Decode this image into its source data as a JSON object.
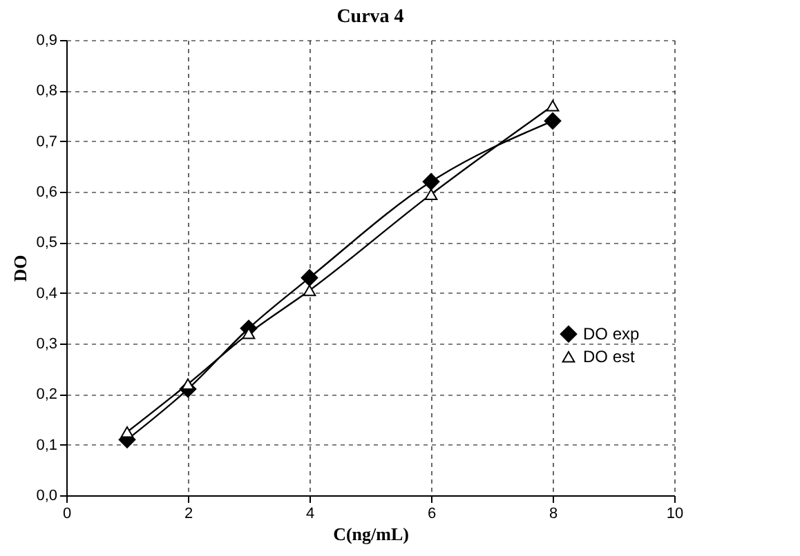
{
  "chart_data": {
    "type": "line",
    "title": "Curva 4",
    "xlabel": "C(ng/mL)",
    "ylabel": "DO",
    "x": [
      1,
      2,
      3,
      4,
      6,
      8
    ],
    "series": [
      {
        "name": "DO exp",
        "color": "#000000",
        "marker": "diamond",
        "values": [
          0.11,
          0.21,
          0.33,
          0.43,
          0.62,
          0.74
        ]
      },
      {
        "name": "DO est",
        "color": "#000000",
        "marker": "triangle",
        "values": [
          0.125,
          0.22,
          0.32,
          0.405,
          0.595,
          0.77
        ]
      }
    ],
    "xlim": [
      0,
      10
    ],
    "xticks": [
      0,
      2,
      4,
      6,
      8,
      10
    ],
    "ylim": [
      0,
      0.9
    ],
    "yticks": [
      {
        "value": 0,
        "label": "0,0"
      },
      {
        "value": 0.1,
        "label": "0,1"
      },
      {
        "value": 0.2,
        "label": "0,2"
      },
      {
        "value": 0.3,
        "label": "0,3"
      },
      {
        "value": 0.4,
        "label": "0,4"
      },
      {
        "value": 0.5,
        "label": "0,5"
      },
      {
        "value": 0.6,
        "label": "0,6"
      },
      {
        "value": 0.7,
        "label": "0,7"
      },
      {
        "value": 0.8,
        "label": "0,8"
      },
      {
        "value": 0.9,
        "label": "0,9"
      }
    ],
    "grid": true,
    "legend": "right",
    "line_style": "solid"
  }
}
